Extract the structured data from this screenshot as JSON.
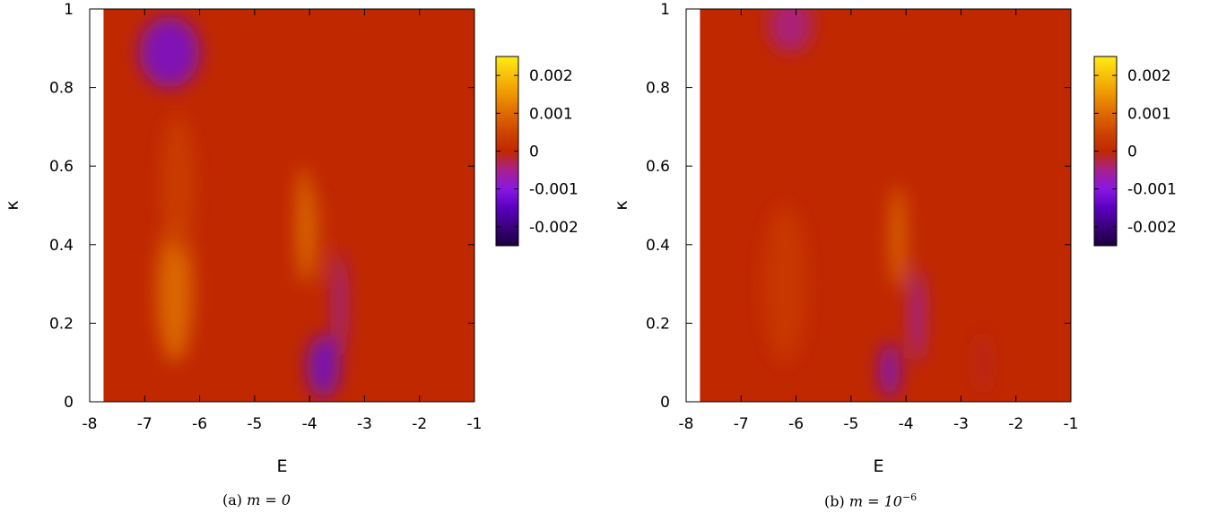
{
  "chart_data": [
    {
      "type": "heatmap",
      "title": "",
      "caption_label": "(a)",
      "caption_math": "m = 0",
      "xlabel": "E",
      "ylabel": "κ",
      "xlim": [
        -8,
        -1
      ],
      "ylim": [
        0,
        1
      ],
      "data_xlim": [
        -7.75,
        -1
      ],
      "x_ticks": [
        -8,
        -7,
        -6,
        -5,
        -4,
        -3,
        -2,
        -1
      ],
      "y_ticks": [
        0,
        0.2,
        0.4,
        0.6,
        0.8,
        1
      ],
      "colorbar": {
        "range": [
          -0.0025,
          0.0025
        ],
        "ticks": [
          0.002,
          0.001,
          0,
          -0.001,
          -0.002
        ],
        "tick_labels": [
          "0.002",
          "0.001",
          "0",
          "-0.001",
          "-0.002"
        ]
      },
      "features": [
        {
          "E": -6.55,
          "kappa": 0.89,
          "value": -0.0012,
          "sigma_E": 0.55,
          "sigma_k": 0.09
        },
        {
          "E": -6.45,
          "kappa": 0.28,
          "value": 0.0011,
          "sigma_E": 0.32,
          "sigma_k": 0.18
        },
        {
          "E": -6.4,
          "kappa": 0.55,
          "value": 0.0004,
          "sigma_E": 0.3,
          "sigma_k": 0.18
        },
        {
          "E": -4.1,
          "kappa": 0.45,
          "value": 0.0016,
          "sigma_E": 0.09,
          "sigma_k": 0.15
        },
        {
          "E": -3.75,
          "kappa": 0.09,
          "value": -0.0013,
          "sigma_E": 0.3,
          "sigma_k": 0.08
        },
        {
          "E": -3.45,
          "kappa": 0.25,
          "value": -0.001,
          "sigma_E": 0.09,
          "sigma_k": 0.13
        },
        {
          "E": -3.85,
          "kappa": 0.42,
          "value": 0.0006,
          "sigma_E": 0.07,
          "sigma_k": 0.12
        }
      ]
    },
    {
      "type": "heatmap",
      "title": "",
      "caption_label": "(b)",
      "caption_math": "m = 10",
      "caption_exp": "−6",
      "xlabel": "E",
      "ylabel": "κ",
      "xlim": [
        -8,
        -1
      ],
      "ylim": [
        0,
        1
      ],
      "data_xlim": [
        -7.75,
        -1
      ],
      "x_ticks": [
        -8,
        -7,
        -6,
        -5,
        -4,
        -3,
        -2,
        -1
      ],
      "y_ticks": [
        0,
        0.2,
        0.4,
        0.6,
        0.8,
        1
      ],
      "colorbar": {
        "range": [
          -0.0025,
          0.0025
        ],
        "ticks": [
          0.002,
          0.001,
          0,
          -0.001,
          -0.002
        ],
        "tick_labels": [
          "0.002",
          "0.001",
          "0",
          "-0.001",
          "-0.002"
        ]
      },
      "features": [
        {
          "E": -6.1,
          "kappa": 0.96,
          "value": -0.0005,
          "sigma_E": 0.4,
          "sigma_k": 0.07
        },
        {
          "E": -6.2,
          "kappa": 0.3,
          "value": 0.0003,
          "sigma_E": 0.4,
          "sigma_k": 0.2
        },
        {
          "E": -4.15,
          "kappa": 0.42,
          "value": 0.0012,
          "sigma_E": 0.12,
          "sigma_k": 0.13
        },
        {
          "E": -4.3,
          "kappa": 0.08,
          "value": -0.0012,
          "sigma_E": 0.18,
          "sigma_k": 0.07
        },
        {
          "E": -3.8,
          "kappa": 0.22,
          "value": -0.0009,
          "sigma_E": 0.1,
          "sigma_k": 0.12
        },
        {
          "E": -2.6,
          "kappa": 0.1,
          "value": -0.0002,
          "sigma_E": 0.08,
          "sigma_k": 0.08
        }
      ]
    }
  ]
}
